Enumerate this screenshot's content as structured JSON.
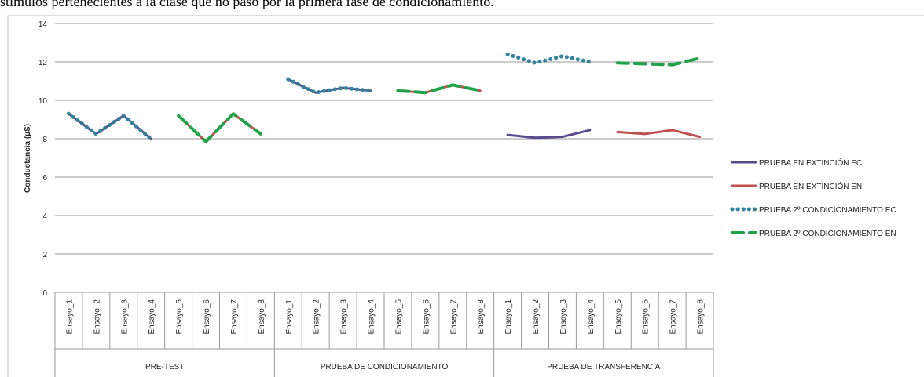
{
  "caption": "stímulos pertenecientes a la clase que no pasó por la primera fase de condicionamiento.",
  "chart_data": {
    "type": "line",
    "ylabel": "Conductancia  (µS)",
    "categories": [
      "Ensayo_1",
      "Ensayo_2",
      "Ensayo_3",
      "Ensayo_4",
      "Ensayo_5",
      "Ensayo_6",
      "Ensayo_7",
      "Ensayo_8",
      "Ensayo_1",
      "Ensayo_2",
      "Ensayo_3",
      "Ensayo_4",
      "Ensayo_5",
      "Ensayo_6",
      "Ensayo_7",
      "Ensayo_8",
      "Ensayo_1",
      "Ensayo_2",
      "Ensayo_3",
      "Ensayo_4",
      "Ensayo_5",
      "Ensayo_6",
      "Ensayo_7",
      "Ensayo_8"
    ],
    "groups": [
      "PRE-TEST",
      "PRUEBA DE CONDICIONAMIENTO",
      "PRUEBA DE TRANSFERENCIA"
    ],
    "ylim": [
      0,
      14
    ],
    "yticks": [
      0,
      2,
      4,
      6,
      8,
      10,
      12,
      14
    ],
    "grid": true,
    "legend": "right",
    "series": [
      {
        "name": "PRUEBA EN EXTINCIÓN EC",
        "color": "#5b4a8e",
        "style": "solid",
        "values": [
          9.3,
          8.25,
          9.2,
          8.0,
          null,
          null,
          null,
          null,
          11.1,
          10.4,
          10.65,
          10.5,
          null,
          null,
          null,
          null,
          8.2,
          8.05,
          8.1,
          8.45,
          null,
          null,
          null,
          null
        ]
      },
      {
        "name": "PRUEBA EN EXTINCIÓN EN",
        "color": "#c0504d",
        "style": "solid",
        "values": [
          null,
          null,
          null,
          null,
          9.2,
          7.85,
          9.3,
          8.25,
          null,
          null,
          null,
          null,
          10.5,
          10.4,
          10.8,
          10.5,
          null,
          null,
          null,
          null,
          8.35,
          8.25,
          8.45,
          8.1
        ]
      },
      {
        "name": "PRUEBA 2º CONDICIONAMIENTO EC",
        "color": "#31849b",
        "style": "dotted",
        "values": [
          9.3,
          8.25,
          9.2,
          8.0,
          null,
          null,
          null,
          null,
          11.1,
          10.4,
          10.65,
          10.5,
          null,
          null,
          null,
          null,
          12.4,
          11.95,
          12.3,
          12.0,
          null,
          null,
          null,
          null
        ]
      },
      {
        "name": "PRUEBA 2º CONDICIONAMIENTO EN",
        "color": "#1fa349",
        "style": "dashed",
        "values": [
          null,
          null,
          null,
          null,
          9.2,
          7.85,
          9.3,
          8.25,
          null,
          null,
          null,
          null,
          10.5,
          10.4,
          10.8,
          10.5,
          null,
          null,
          null,
          null,
          11.95,
          11.9,
          11.85,
          12.2
        ]
      }
    ]
  }
}
